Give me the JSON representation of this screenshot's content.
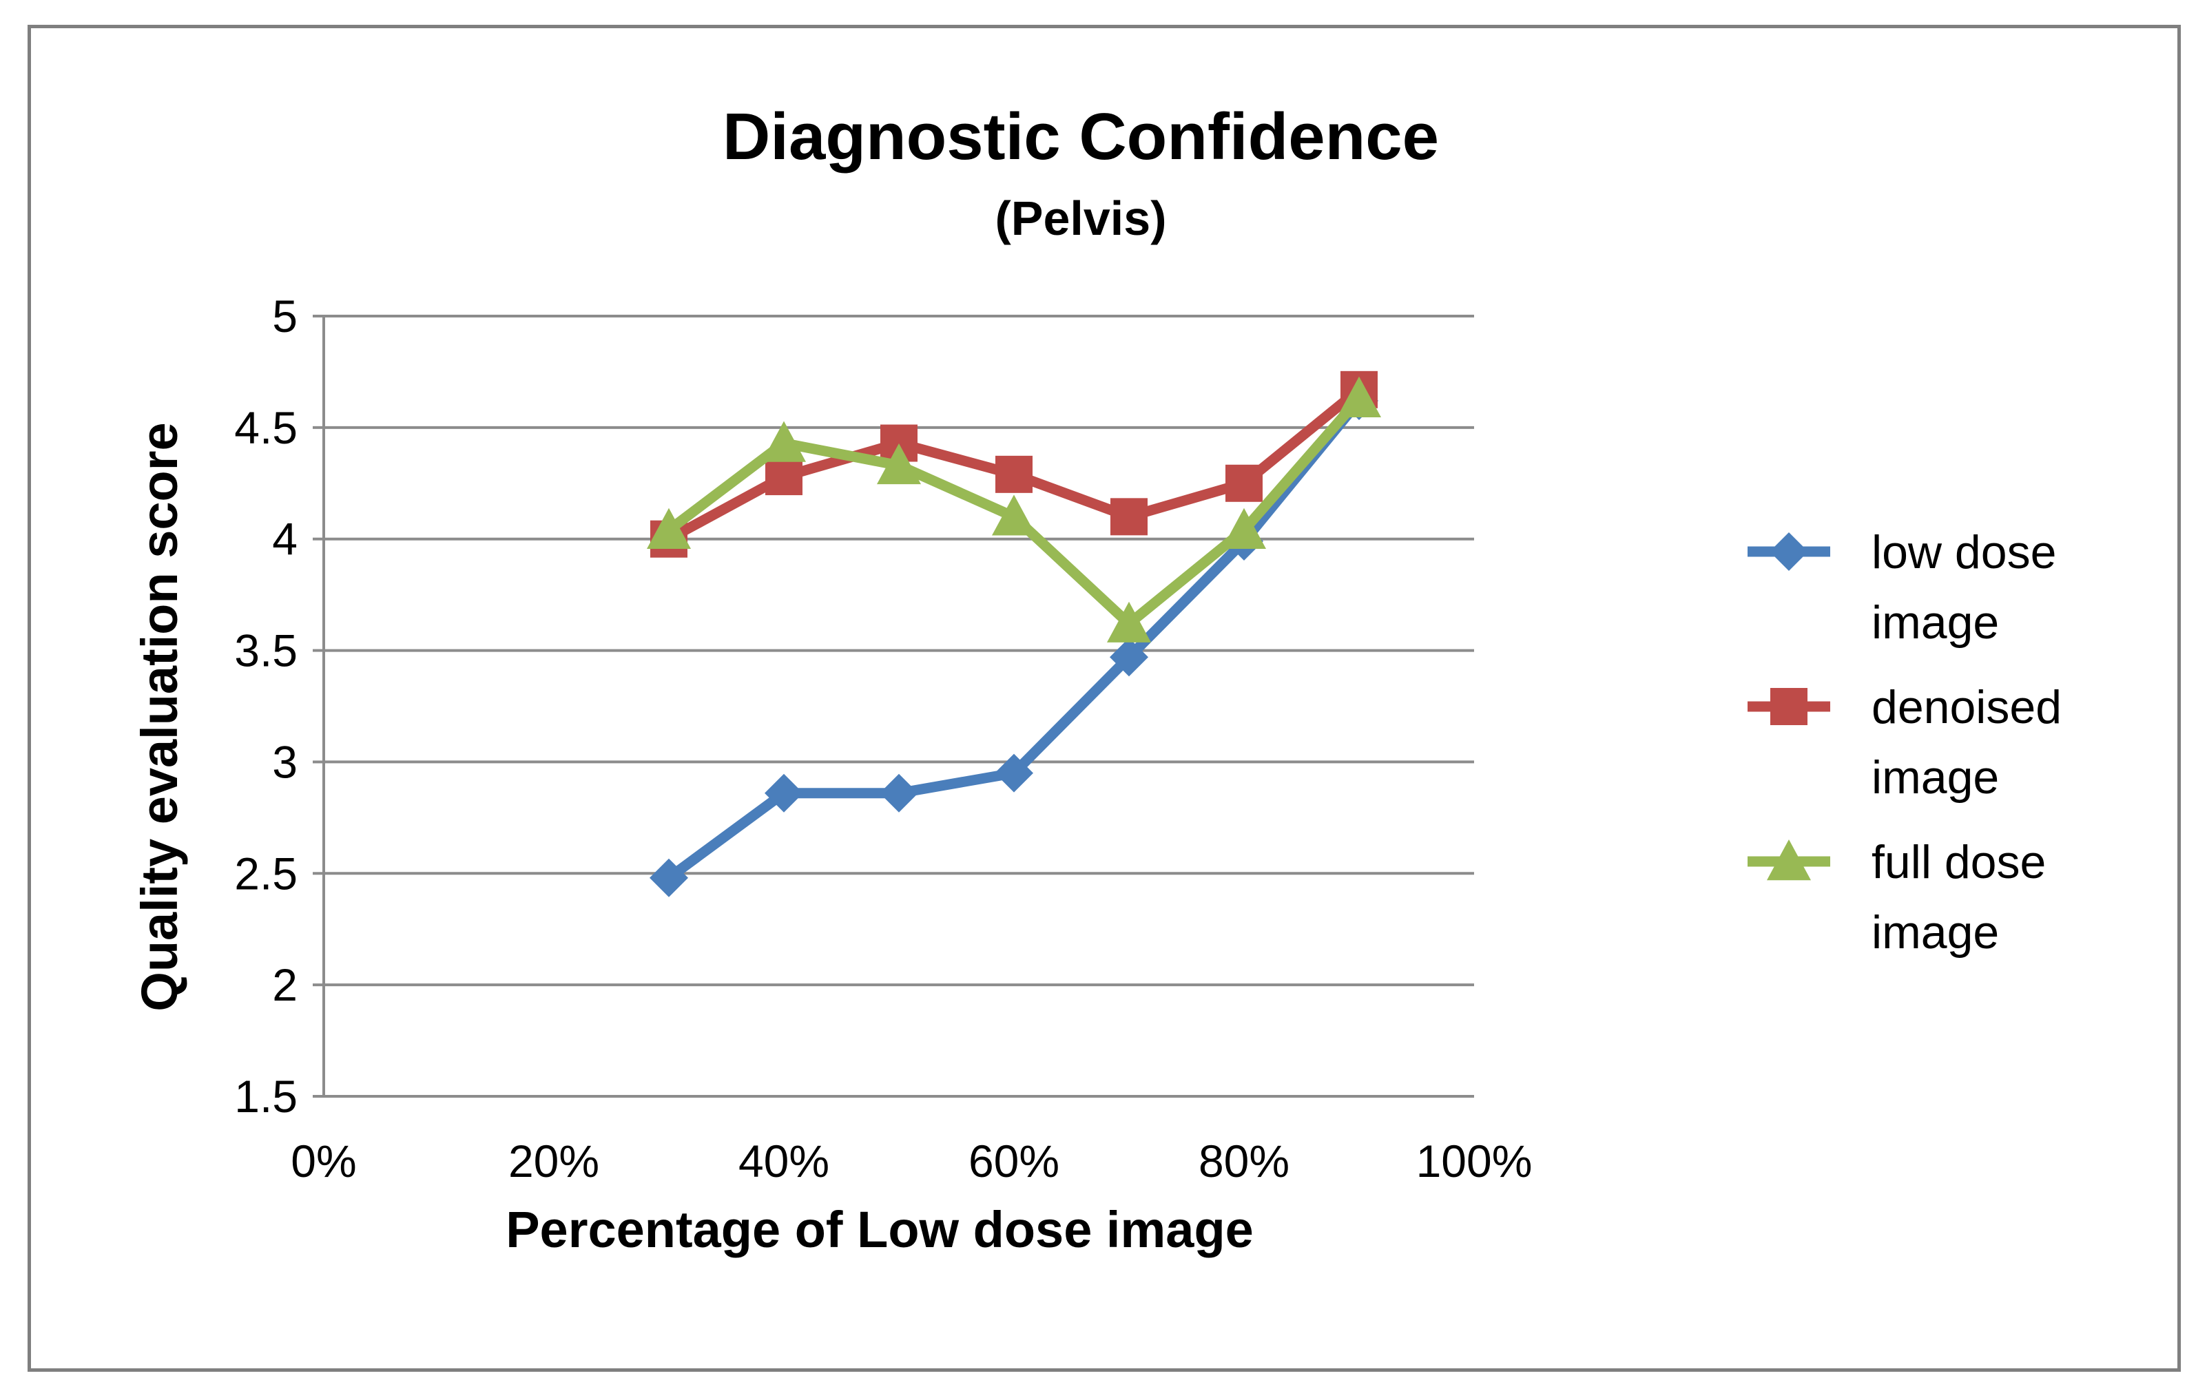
{
  "chart_data": {
    "type": "line",
    "title": "Diagnostic Confidence",
    "subtitle": "(Pelvis)",
    "xlabel": "Percentage of Low dose image",
    "ylabel": "Quality evaluation score",
    "xlim": [
      0,
      100
    ],
    "ylim": [
      1.5,
      5
    ],
    "x_ticks": [
      "0%",
      "20%",
      "40%",
      "60%",
      "80%",
      "100%"
    ],
    "x_tick_values": [
      0,
      20,
      40,
      60,
      80,
      100
    ],
    "y_ticks": [
      "1.5",
      "2",
      "2.5",
      "3",
      "3.5",
      "4",
      "4.5",
      "5"
    ],
    "y_tick_values": [
      1.5,
      2,
      2.5,
      3,
      3.5,
      4,
      4.5,
      5
    ],
    "grid": "horizontal",
    "legend_position": "right",
    "series": [
      {
        "name": "low dose image",
        "legend_lines": [
          "low dose",
          "image"
        ],
        "color": "#4a7ebb",
        "marker": "diamond",
        "x": [
          30,
          40,
          50,
          60,
          70,
          80,
          90
        ],
        "values": [
          2.48,
          2.86,
          2.86,
          2.95,
          3.47,
          3.99,
          4.62
        ]
      },
      {
        "name": "denoised image",
        "legend_lines": [
          "denoised",
          "image"
        ],
        "color": "#be4b48",
        "marker": "square",
        "x": [
          30,
          40,
          50,
          60,
          70,
          80,
          90
        ],
        "values": [
          4.0,
          4.28,
          4.43,
          4.29,
          4.1,
          4.25,
          4.67
        ]
      },
      {
        "name": "full dose image",
        "legend_lines": [
          "full dose",
          "image"
        ],
        "color": "#98b954",
        "marker": "triangle",
        "x": [
          30,
          40,
          50,
          60,
          70,
          80,
          90
        ],
        "values": [
          4.04,
          4.43,
          4.33,
          4.1,
          3.62,
          4.04,
          4.63
        ]
      }
    ]
  }
}
